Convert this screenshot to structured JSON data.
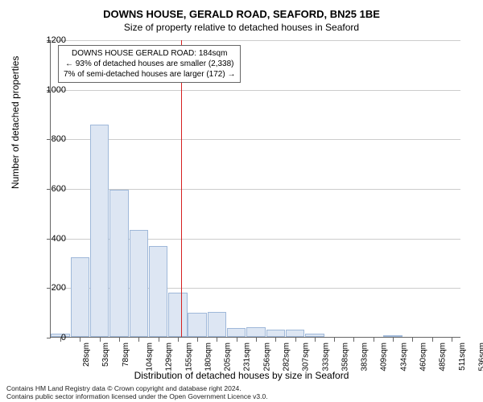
{
  "title_main": "DOWNS HOUSE, GERALD ROAD, SEAFORD, BN25 1BE",
  "title_sub": "Size of property relative to detached houses in Seaford",
  "y_axis_label": "Number of detached properties",
  "x_axis_label": "Distribution of detached houses by size in Seaford",
  "footer1": "Contains HM Land Registry data © Crown copyright and database right 2024.",
  "footer2": "Contains public sector information licensed under the Open Government Licence v3.0.",
  "annot": {
    "line1": "DOWNS HOUSE GERALD ROAD: 184sqm",
    "line2": "← 93% of detached houses are smaller (2,338)",
    "line3": "7% of semi-detached houses are larger (172) →"
  },
  "chart": {
    "type": "histogram",
    "ylim": [
      0,
      1200
    ],
    "ytick_step": 200,
    "bar_fill": "#dde6f3",
    "bar_border": "#9fb8d9",
    "grid_color": "#cccccc",
    "ref_line_color": "#d62020",
    "ref_x_bin_index": 6.15,
    "categories": [
      "28sqm",
      "53sqm",
      "78sqm",
      "104sqm",
      "129sqm",
      "155sqm",
      "180sqm",
      "205sqm",
      "231sqm",
      "256sqm",
      "282sqm",
      "307sqm",
      "333sqm",
      "358sqm",
      "383sqm",
      "409sqm",
      "434sqm",
      "460sqm",
      "485sqm",
      "511sqm",
      "536sqm"
    ],
    "values": [
      12,
      320,
      855,
      595,
      430,
      365,
      180,
      98,
      100,
      35,
      40,
      30,
      28,
      12,
      0,
      0,
      0,
      8,
      0,
      0,
      0
    ]
  }
}
